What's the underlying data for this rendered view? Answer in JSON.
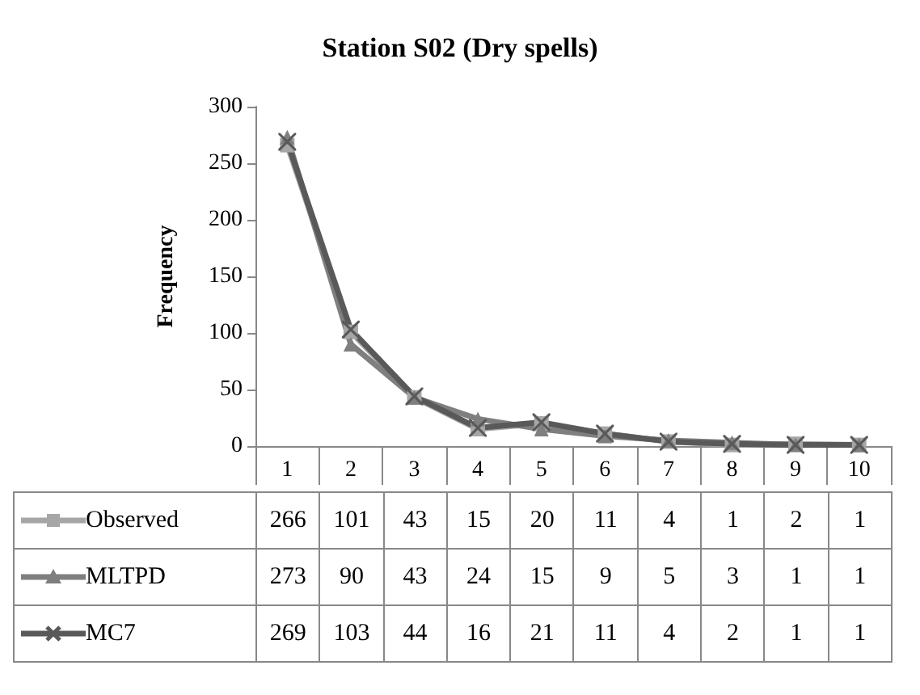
{
  "chart_data": {
    "type": "line",
    "title": "Station S02 (Dry spells)",
    "ylabel": "Frequency",
    "categories": [
      "1",
      "2",
      "3",
      "4",
      "5",
      "6",
      "7",
      "8",
      "9",
      "10"
    ],
    "series": [
      {
        "name": "Observed",
        "color": "#a6a6a6",
        "marker": "square",
        "values": [
          266,
          101,
          43,
          15,
          20,
          11,
          4,
          1,
          2,
          1
        ]
      },
      {
        "name": "MLTPD",
        "color": "#7f7f7f",
        "marker": "triangle",
        "values": [
          273,
          90,
          43,
          24,
          15,
          9,
          5,
          3,
          1,
          1
        ]
      },
      {
        "name": "MC7",
        "color": "#595959",
        "marker": "cross",
        "values": [
          269,
          103,
          44,
          16,
          21,
          11,
          4,
          2,
          1,
          1
        ]
      }
    ],
    "ylim": [
      0,
      300
    ],
    "yticks": [
      0,
      50,
      100,
      150,
      200,
      250,
      300
    ],
    "grid": false,
    "legend": "bottom",
    "data_labels": true,
    "line_style": "solid"
  }
}
